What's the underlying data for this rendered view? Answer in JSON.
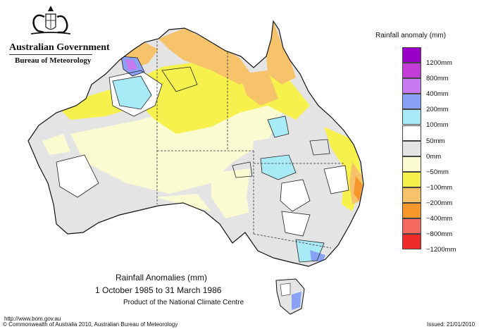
{
  "header": {
    "government": "Australian Government",
    "bureau": "Bureau of Meteorology",
    "crest": "coat-of-arms-icon"
  },
  "legend": {
    "title": "Rainfall anomaly (mm)",
    "items": [
      {
        "label": "1200mm",
        "color": "#9a00c8"
      },
      {
        "label": "800mm",
        "color": "#c43cd8"
      },
      {
        "label": "400mm",
        "color": "#c878f0"
      },
      {
        "label": "200mm",
        "color": "#8aa2f6"
      },
      {
        "label": "100mm",
        "color": "#a8eaf6"
      },
      {
        "label": "50mm",
        "color": "#ffffff"
      },
      {
        "label": "0mm",
        "color": "#e4e4e4"
      },
      {
        "label": "−50mm",
        "color": "#fbfbd2"
      },
      {
        "label": "−100mm",
        "color": "#f6f14c"
      },
      {
        "label": "−200mm",
        "color": "#f7c36a"
      },
      {
        "label": "−400mm",
        "color": "#f7962a"
      },
      {
        "label": "−800mm",
        "color": "#f56a60"
      },
      {
        "label": "−1200mm",
        "color": "#ee2a2a"
      }
    ]
  },
  "title": {
    "line1": "Rainfall Anomalies (mm)",
    "line2": "1 October 1985 to 31 March 1986",
    "line3": "Product of the National Climate Centre"
  },
  "footer": {
    "url": "http://www.bom.gov.au",
    "copyright": "© Commonwealth of Australia 2010, Australian Bureau of Meteorology",
    "issued": "Issued: 21/01/2010"
  }
}
